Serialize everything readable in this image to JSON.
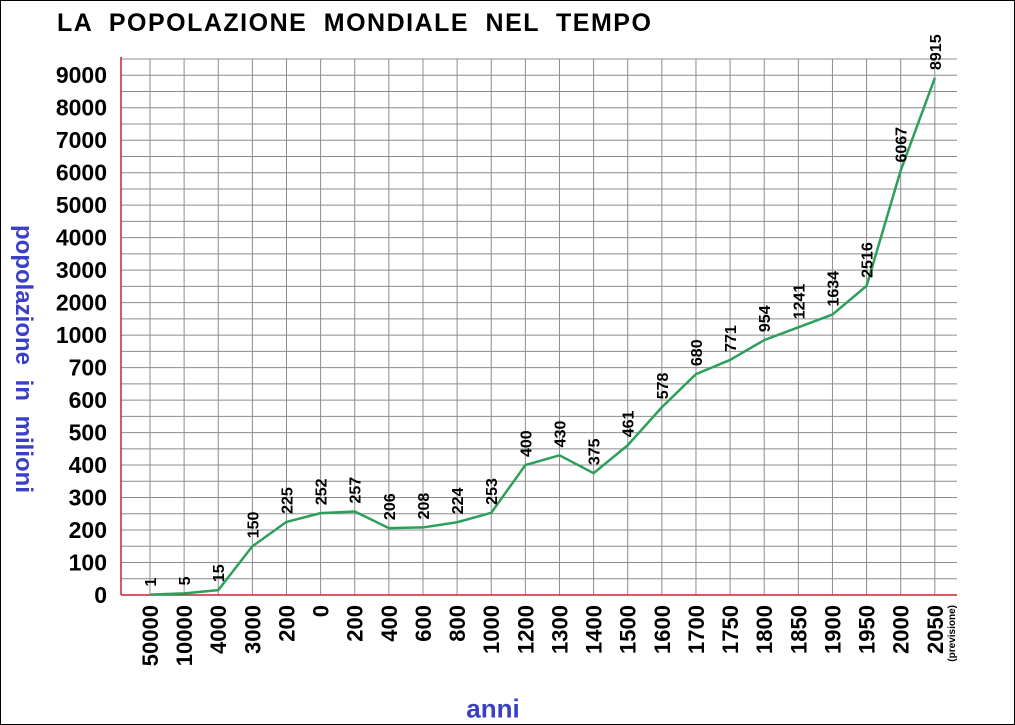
{
  "chart_data": {
    "type": "line",
    "title": "LA POPOLAZIONE MONDIALE NEL TEMPO",
    "xlabel": "anni",
    "ylabel": "popolazione in milioni",
    "categories": [
      "50000",
      "10000",
      "4000",
      "3000",
      "200",
      "0",
      "200",
      "400",
      "600",
      "800",
      "1000",
      "1200",
      "1300",
      "1400",
      "1500",
      "1600",
      "1700",
      "1750",
      "1800",
      "1850",
      "1900",
      "1950",
      "2000",
      "2050"
    ],
    "category_notes": {
      "2050": "(previsione)"
    },
    "values": [
      1,
      5,
      15,
      150,
      225,
      252,
      257,
      206,
      208,
      224,
      253,
      400,
      430,
      375,
      461,
      578,
      680,
      771,
      954,
      1241,
      1634,
      2516,
      6067,
      8915
    ],
    "yticks": [
      "0",
      "100",
      "200",
      "300",
      "400",
      "500",
      "600",
      "700",
      "1000",
      "2000",
      "3000",
      "4000",
      "5000",
      "6000",
      "7000",
      "8000",
      "9000"
    ],
    "ytick_values": [
      0,
      100,
      200,
      300,
      400,
      500,
      600,
      700,
      1000,
      2000,
      3000,
      4000,
      5000,
      6000,
      7000,
      8000,
      9000
    ],
    "grid": true,
    "line_color": "#2ca05a",
    "axis_color": "#cc2233",
    "grid_color": "#8c8c8c",
    "label_color": "#3a3fc8"
  }
}
